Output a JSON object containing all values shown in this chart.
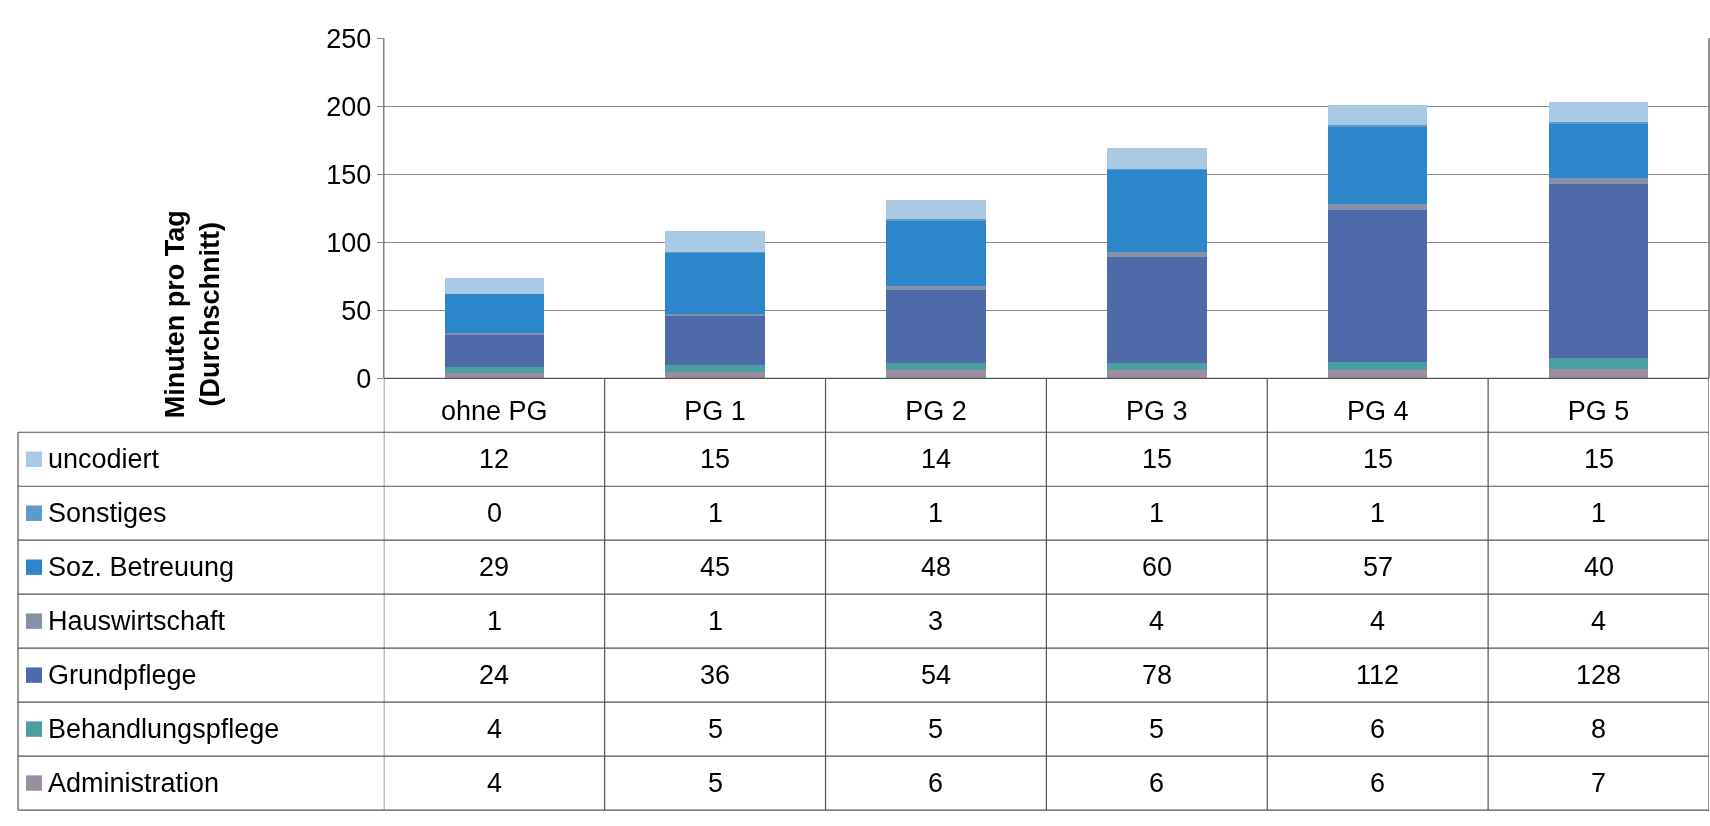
{
  "chart_data": {
    "type": "bar",
    "stacked": true,
    "ylabel": "Minuten pro Tag\n(Durchschnitt)",
    "categories": [
      "ohne PG",
      "PG 1",
      "PG 2",
      "PG 3",
      "PG 4",
      "PG 5"
    ],
    "series": [
      {
        "name": "Administration",
        "color": "#9b8ea0",
        "values": [
          4,
          5,
          6,
          6,
          6,
          7
        ]
      },
      {
        "name": "Behandlungspflege",
        "color": "#4b9ea2",
        "values": [
          4,
          5,
          5,
          5,
          6,
          8
        ]
      },
      {
        "name": "Grundpflege",
        "color": "#4f6aa8",
        "values": [
          24,
          36,
          54,
          78,
          112,
          128
        ]
      },
      {
        "name": "Hauswirtschaft",
        "color": "#8491a8",
        "values": [
          1,
          1,
          3,
          4,
          4,
          4
        ]
      },
      {
        "name": "Soz. Betreuung",
        "color": "#2b87c9",
        "values": [
          29,
          45,
          48,
          60,
          57,
          40
        ]
      },
      {
        "name": "Sonstiges",
        "color": "#5b9bc9",
        "values": [
          0,
          1,
          1,
          1,
          1,
          1
        ]
      },
      {
        "name": "uncodiert",
        "color": "#a9c9e5",
        "values": [
          12,
          15,
          14,
          15,
          15,
          15
        ]
      }
    ],
    "ylim": [
      0,
      250
    ],
    "yticks": [
      0,
      50,
      100,
      150,
      200,
      250
    ],
    "grid": "y",
    "legend": "bottom",
    "data_labels": true
  }
}
